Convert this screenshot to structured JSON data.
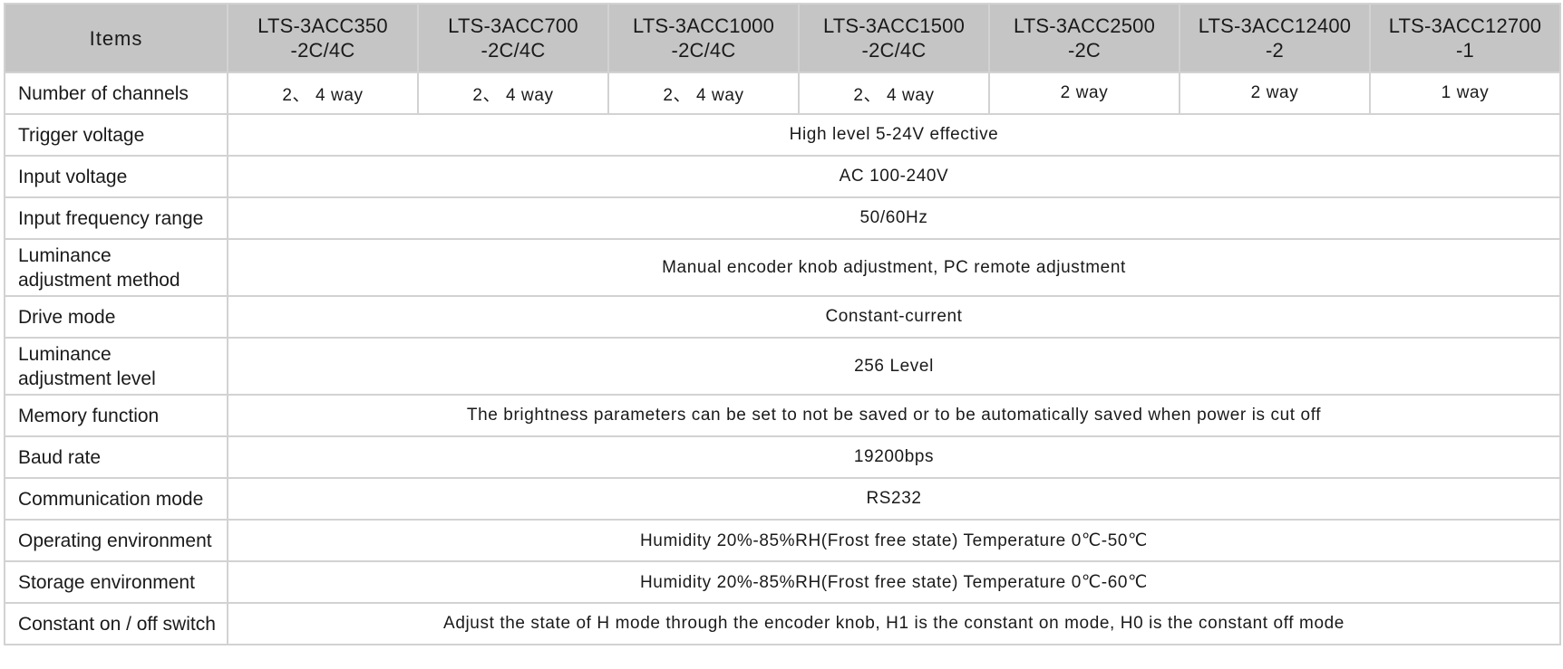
{
  "header": {
    "items_label": "Items",
    "models": [
      {
        "line1": "LTS-3ACC350",
        "line2": "-2C/4C"
      },
      {
        "line1": "LTS-3ACC700",
        "line2": "-2C/4C"
      },
      {
        "line1": "LTS-3ACC1000",
        "line2": "-2C/4C"
      },
      {
        "line1": "LTS-3ACC1500",
        "line2": "-2C/4C"
      },
      {
        "line1": "LTS-3ACC2500",
        "line2": "-2C"
      },
      {
        "line1": "LTS-3ACC12400",
        "line2": "-2"
      },
      {
        "line1": "LTS-3ACC12700",
        "line2": "-1"
      }
    ]
  },
  "rows": {
    "channels": {
      "label": "Number of channels",
      "values": [
        "2、 4 way",
        "2、 4 way",
        "2、 4 way",
        "2、 4 way",
        "2 way",
        "2 way",
        "1 way"
      ]
    },
    "trigger": {
      "label": "Trigger voltage",
      "value": "High level 5-24V effective"
    },
    "input_voltage": {
      "label": "Input voltage",
      "value": "AC 100-240V"
    },
    "frequency": {
      "label": "Input frequency range",
      "value": "50/60Hz"
    },
    "lum_method": {
      "label_line1": "Luminance",
      "label_line2": "adjustment method",
      "value": "Manual encoder knob adjustment, PC remote adjustment"
    },
    "drive": {
      "label": "Drive mode",
      "value": "Constant-current"
    },
    "lum_level": {
      "label_line1": "Luminance",
      "label_line2": "adjustment level",
      "value": "256 Level"
    },
    "memory": {
      "label": "Memory function",
      "value": "The brightness parameters can be set to not be saved or to be automatically saved when power is cut off"
    },
    "baud": {
      "label": "Baud rate",
      "value": "19200bps"
    },
    "comm": {
      "label": "Communication mode",
      "value": "RS232"
    },
    "operating": {
      "label": "Operating environment",
      "value": "Humidity 20%-85%RH(Frost free state) Temperature 0℃-50℃"
    },
    "storage": {
      "label": "Storage environment",
      "value": "Humidity 20%-85%RH(Frost free state) Temperature 0℃-60℃"
    },
    "switch": {
      "label": "Constant on / off switch",
      "value": "Adjust the state of H mode through the encoder knob, H1 is the constant on mode, H0 is the constant off mode"
    }
  },
  "colors": {
    "header_bg": "#c5c5c5",
    "border": "#d2d2d2",
    "text": "#1a1a1a"
  }
}
